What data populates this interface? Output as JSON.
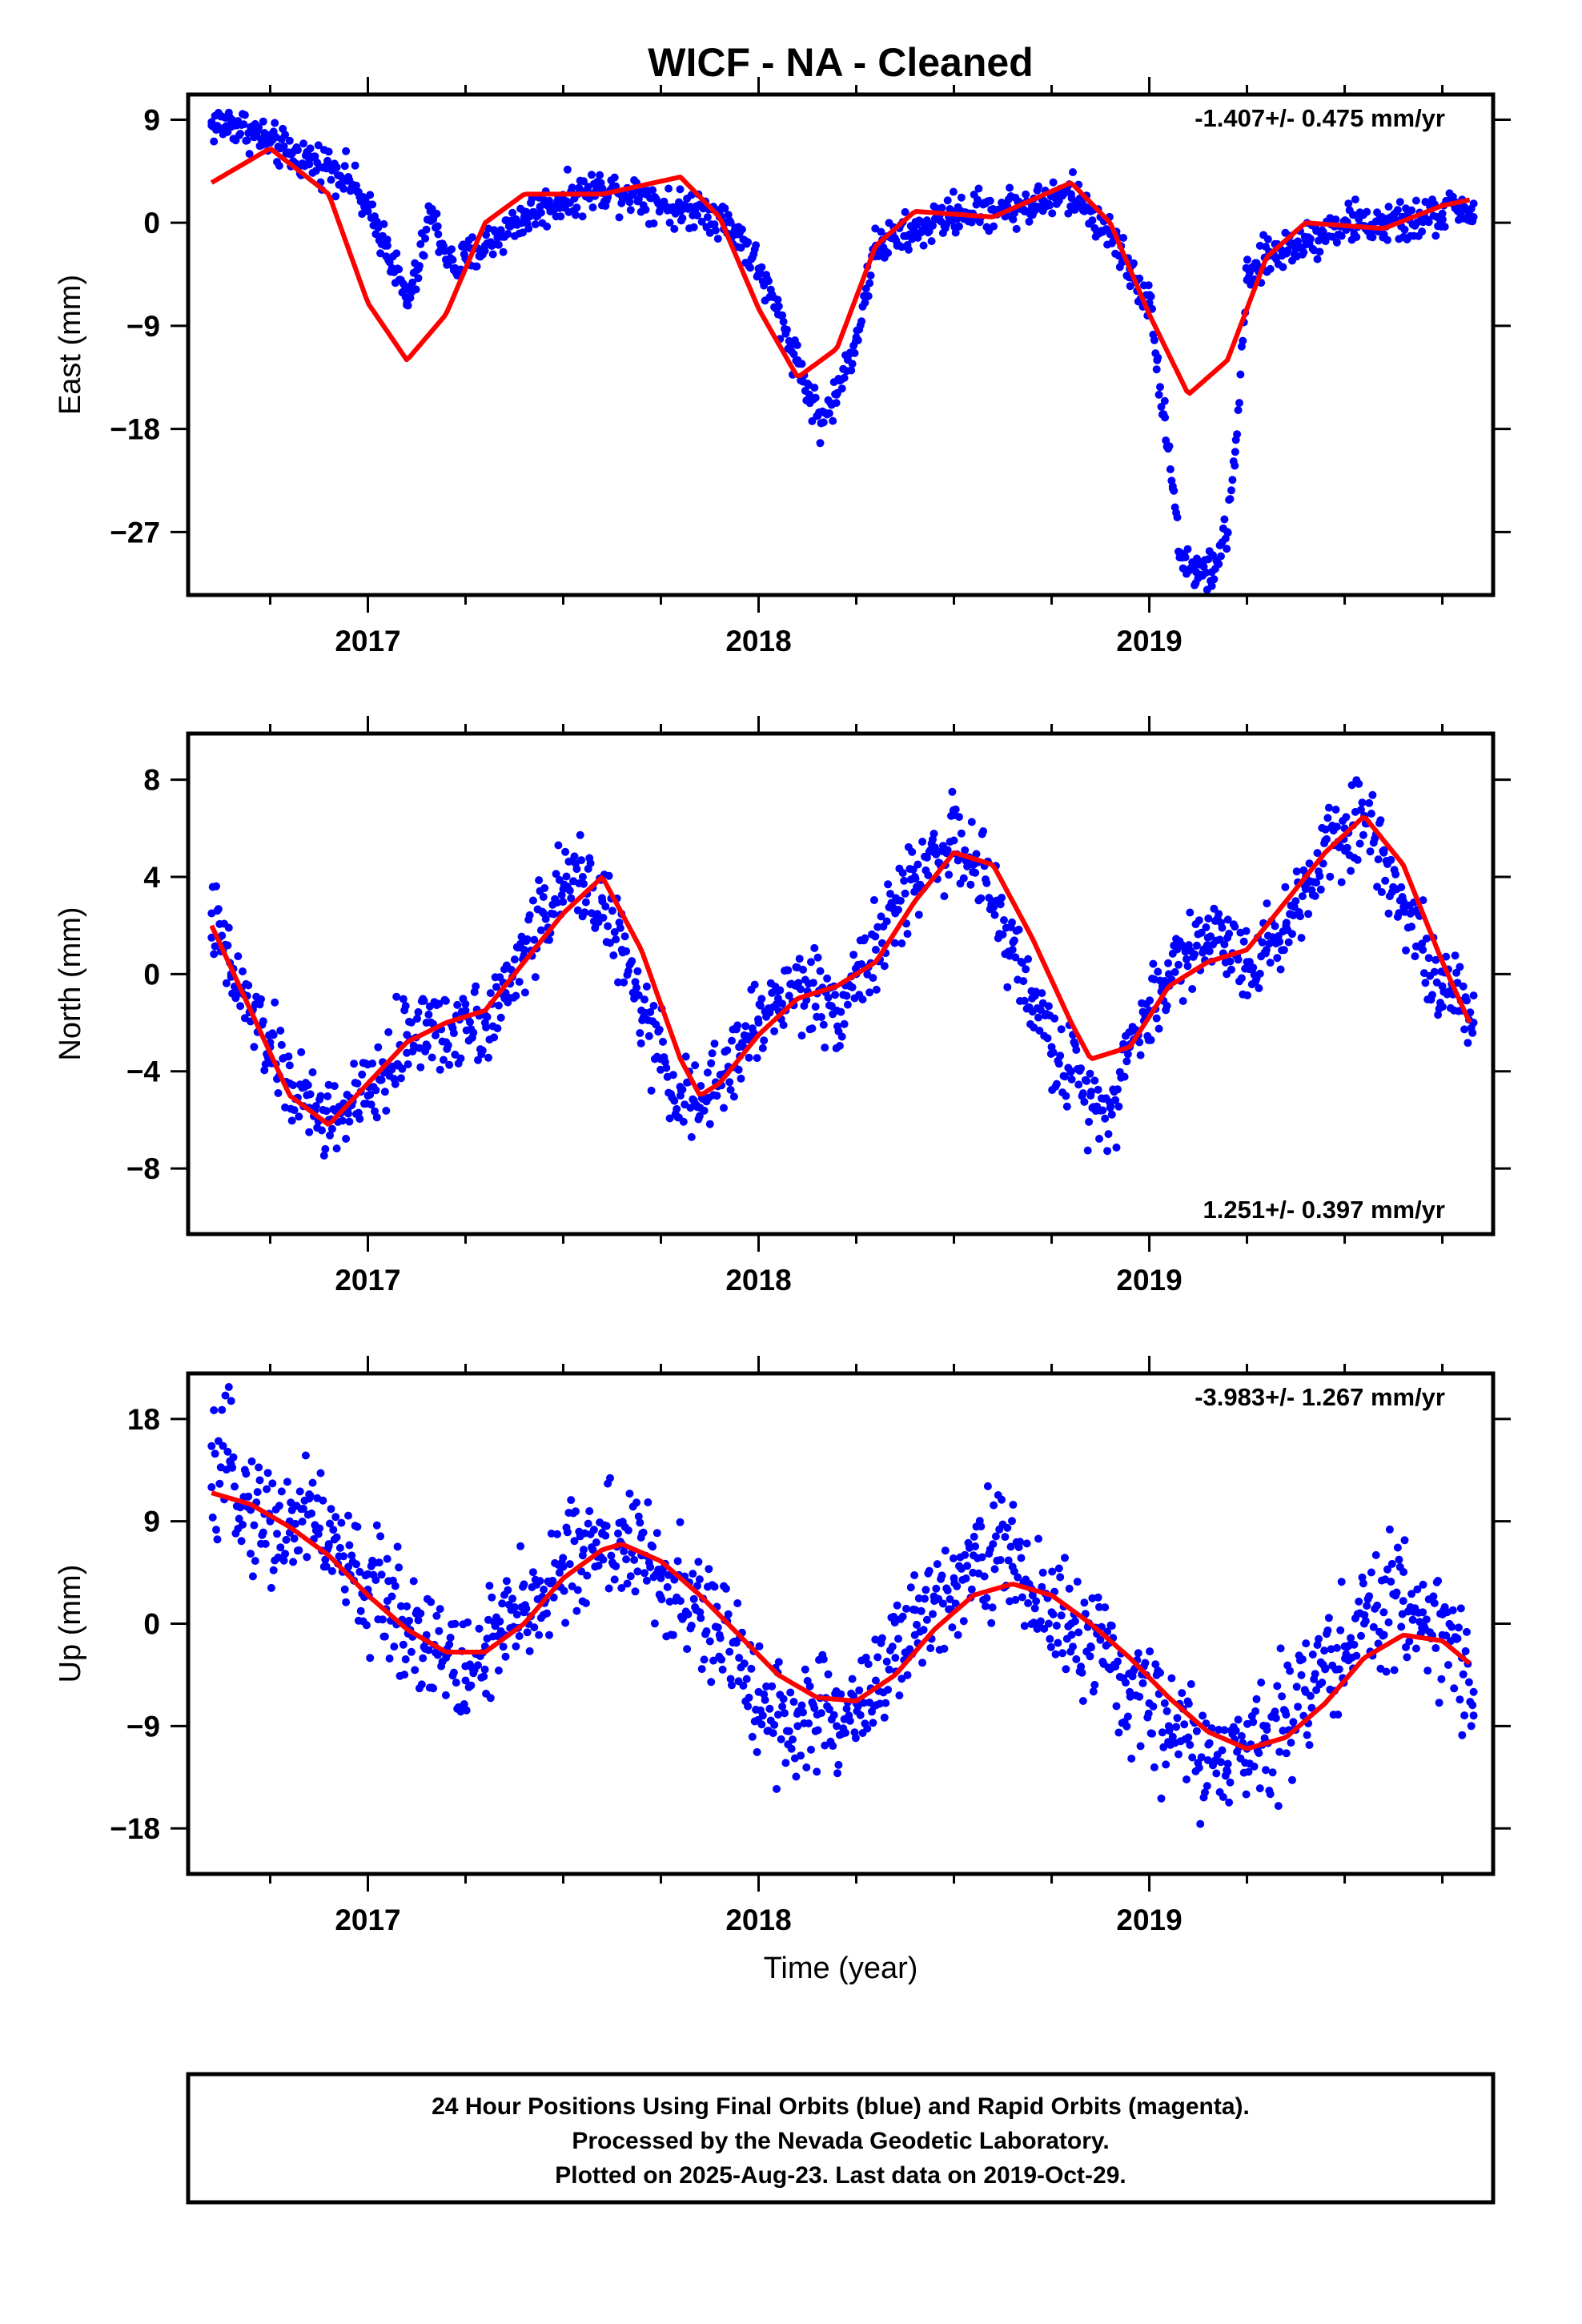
{
  "title": "WICF  - NA - Cleaned",
  "xlabel": "Time (year)",
  "caption": [
    "24 Hour Positions Using Final Orbits (blue) and Rapid Orbits (magenta).",
    "Processed by the Nevada Geodetic Laboratory.",
    "Plotted on 2025-Aug-23. Last data on 2019-Oct-29."
  ],
  "colors": {
    "final_orbits": "#0000ff",
    "model": "#ff0000",
    "frame": "#000000"
  },
  "chart_data": [
    {
      "type": "scatter",
      "ylabel": "East (mm)",
      "rate": "-1.407+/- 0.475 mm/yr",
      "xlim": [
        2016.54,
        2019.88
      ],
      "ylim": [
        -32.5,
        11.2
      ],
      "xticks": [
        2017,
        2018,
        2019
      ],
      "yticks": [
        9,
        0,
        -9,
        -18,
        -27
      ],
      "grid": false,
      "series": [
        {
          "kind": "points",
          "x": [
            2016.6,
            2016.65,
            2016.7,
            2016.75,
            2016.8,
            2016.85,
            2016.9,
            2016.95,
            2017.0,
            2017.05,
            2017.08,
            2017.1,
            2017.13,
            2017.16,
            2017.18,
            2017.22,
            2017.3,
            2017.4,
            2017.5,
            2017.6,
            2017.7,
            2017.8,
            2017.85,
            2017.9,
            2017.95,
            2018.0,
            2018.05,
            2018.1,
            2018.13,
            2018.16,
            2018.2,
            2018.25,
            2018.3,
            2018.4,
            2018.5,
            2018.6,
            2018.7,
            2018.8,
            2018.85,
            2018.9,
            2018.95,
            2019.0,
            2019.02,
            2019.04,
            2019.06,
            2019.08,
            2019.12,
            2019.16,
            2019.2,
            2019.22,
            2019.25,
            2019.3,
            2019.4,
            2019.5,
            2019.6,
            2019.7,
            2019.75,
            2019.8,
            2019.83
          ],
          "y": [
            8.5,
            8.7,
            8.0,
            7.0,
            6.0,
            5.5,
            5.0,
            4.0,
            1.0,
            -2.0,
            -5.0,
            -7.0,
            -4.0,
            1.0,
            -1.0,
            -4.0,
            -2.0,
            0.5,
            2.0,
            3.0,
            2.5,
            1.0,
            1.5,
            0.5,
            -1.0,
            -4.0,
            -8.0,
            -12.0,
            -15.0,
            -17.5,
            -15.0,
            -10.0,
            -2.0,
            -0.8,
            0.8,
            1.2,
            1.5,
            2.5,
            1.0,
            -1.0,
            -4.0,
            -7.0,
            -12.0,
            -17.0,
            -23.0,
            -29.0,
            -30.5,
            -30.5,
            -27.0,
            -20.0,
            -5.0,
            -3.0,
            -1.5,
            0.0,
            -0.2,
            0.2,
            0.8,
            1.5,
            0.5
          ]
        },
        {
          "kind": "model",
          "x": [
            2016.6,
            2016.75,
            2016.9,
            2017.0,
            2017.1,
            2017.2,
            2017.3,
            2017.4,
            2017.6,
            2017.8,
            2017.9,
            2018.0,
            2018.1,
            2018.2,
            2018.3,
            2018.4,
            2018.6,
            2018.8,
            2018.9,
            2019.0,
            2019.1,
            2019.2,
            2019.3,
            2019.4,
            2019.6,
            2019.75,
            2019.82
          ],
          "y": [
            3.5,
            6.5,
            2.5,
            -7.0,
            -12.0,
            -8.0,
            0.0,
            2.5,
            2.5,
            4.0,
            0.5,
            -7.5,
            -13.5,
            -11.0,
            -2.0,
            1.0,
            0.5,
            3.5,
            0.0,
            -8.0,
            -15.0,
            -12.0,
            -3.0,
            0.0,
            -0.5,
            1.5,
            2.0
          ]
        }
      ]
    },
    {
      "type": "scatter",
      "ylabel": "North (mm)",
      "rate": "1.251+/- 0.397 mm/yr",
      "xlim": [
        2016.54,
        2019.88
      ],
      "ylim": [
        -10.7,
        9.9
      ],
      "xticks": [
        2017,
        2018,
        2019
      ],
      "yticks": [
        8,
        4,
        0,
        -4,
        -8
      ],
      "grid": false,
      "series": [
        {
          "kind": "points",
          "x": [
            2016.6,
            2016.62,
            2016.65,
            2016.7,
            2016.75,
            2016.8,
            2016.85,
            2016.9,
            2016.95,
            2017.0,
            2017.05,
            2017.1,
            2017.15,
            2017.2,
            2017.25,
            2017.3,
            2017.35,
            2017.4,
            2017.45,
            2017.5,
            2017.55,
            2017.6,
            2017.65,
            2017.7,
            2017.75,
            2017.8,
            2017.85,
            2017.9,
            2017.95,
            2018.0,
            2018.05,
            2018.1,
            2018.15,
            2018.2,
            2018.25,
            2018.3,
            2018.35,
            2018.4,
            2018.45,
            2018.5,
            2018.55,
            2018.6,
            2018.65,
            2018.7,
            2018.75,
            2018.8,
            2018.85,
            2018.9,
            2018.95,
            2019.0,
            2019.05,
            2019.1,
            2019.15,
            2019.2,
            2019.25,
            2019.3,
            2019.35,
            2019.4,
            2019.45,
            2019.5,
            2019.55,
            2019.6,
            2019.65,
            2019.7,
            2019.75,
            2019.8,
            2019.83
          ],
          "y": [
            2.5,
            1.5,
            0.0,
            -1.5,
            -3.0,
            -4.5,
            -5.5,
            -6.0,
            -5.5,
            -5.0,
            -4.0,
            -2.5,
            -2.0,
            -2.8,
            -1.5,
            -2.0,
            -1.0,
            1.0,
            2.5,
            3.5,
            4.0,
            3.0,
            1.0,
            -1.5,
            -3.5,
            -5.0,
            -5.5,
            -4.5,
            -3.0,
            -2.0,
            -1.0,
            -0.5,
            -0.8,
            -1.5,
            0.0,
            1.0,
            2.5,
            4.0,
            5.0,
            5.5,
            4.5,
            3.0,
            1.0,
            -1.0,
            -3.0,
            -4.0,
            -5.0,
            -5.5,
            -3.0,
            -1.5,
            0.0,
            1.0,
            1.5,
            1.5,
            0.5,
            1.0,
            2.0,
            3.5,
            5.5,
            6.0,
            6.5,
            5.0,
            3.0,
            1.0,
            -0.5,
            -1.5,
            -2.0
          ]
        },
        {
          "kind": "model",
          "x": [
            2016.6,
            2016.7,
            2016.8,
            2016.9,
            2017.0,
            2017.1,
            2017.2,
            2017.3,
            2017.4,
            2017.5,
            2017.6,
            2017.7,
            2017.8,
            2017.85,
            2017.9,
            2018.0,
            2018.1,
            2018.2,
            2018.3,
            2018.4,
            2018.5,
            2018.6,
            2018.7,
            2018.8,
            2018.85,
            2018.95,
            2019.05,
            2019.15,
            2019.25,
            2019.35,
            2019.45,
            2019.55,
            2019.65,
            2019.75,
            2019.82
          ],
          "y": [
            2.0,
            -1.5,
            -5.0,
            -6.2,
            -4.5,
            -2.8,
            -2.0,
            -1.5,
            0.5,
            2.5,
            4.0,
            1.0,
            -3.5,
            -5.0,
            -4.5,
            -2.5,
            -1.0,
            -0.5,
            0.5,
            3.0,
            5.0,
            4.5,
            1.5,
            -2.0,
            -3.5,
            -3.0,
            -0.5,
            0.5,
            1.0,
            3.0,
            5.0,
            6.5,
            4.5,
            0.5,
            -2.0
          ]
        }
      ]
    },
    {
      "type": "scatter",
      "ylabel": "Up (mm)",
      "rate": "-3.983+/- 1.267 mm/yr",
      "xlim": [
        2016.54,
        2019.88
      ],
      "ylim": [
        -22,
        22
      ],
      "xticks": [
        2017,
        2018,
        2019
      ],
      "yticks": [
        18,
        9,
        0,
        -9,
        -18
      ],
      "grid": false,
      "series": [
        {
          "kind": "points",
          "x": [
            2016.6,
            2016.65,
            2016.7,
            2016.75,
            2016.8,
            2016.85,
            2016.9,
            2016.95,
            2017.0,
            2017.05,
            2017.1,
            2017.15,
            2017.2,
            2017.25,
            2017.3,
            2017.35,
            2017.4,
            2017.45,
            2017.5,
            2017.55,
            2017.6,
            2017.65,
            2017.7,
            2017.75,
            2017.8,
            2017.85,
            2017.9,
            2017.95,
            2018.0,
            2018.05,
            2018.1,
            2018.15,
            2018.2,
            2018.25,
            2018.3,
            2018.35,
            2018.4,
            2018.45,
            2018.5,
            2018.55,
            2018.6,
            2018.65,
            2018.7,
            2018.75,
            2018.8,
            2018.85,
            2018.9,
            2018.95,
            2019.0,
            2019.05,
            2019.1,
            2019.15,
            2019.2,
            2019.25,
            2019.3,
            2019.35,
            2019.4,
            2019.45,
            2019.5,
            2019.55,
            2019.6,
            2019.65,
            2019.7,
            2019.75,
            2019.8,
            2019.83
          ],
          "y": [
            12,
            14,
            10,
            9,
            8,
            11,
            7,
            5,
            3,
            2,
            0,
            -1,
            -3,
            -5,
            -2,
            -1,
            1,
            3,
            5,
            6,
            8,
            7,
            6,
            4,
            2,
            1,
            -1,
            -3,
            -6,
            -8,
            -9,
            -8,
            -9,
            -7,
            -5,
            -3,
            -1,
            2,
            4,
            6,
            7,
            5,
            3,
            1,
            0,
            -2,
            -4,
            -6,
            -7,
            -9,
            -10,
            -12,
            -13,
            -11,
            -9,
            -8,
            -6,
            -4,
            -2,
            0,
            1,
            2,
            1,
            -1,
            -3,
            -6
          ]
        },
        {
          "kind": "model",
          "x": [
            2016.6,
            2016.7,
            2016.8,
            2016.9,
            2017.0,
            2017.1,
            2017.2,
            2017.3,
            2017.4,
            2017.5,
            2017.6,
            2017.65,
            2017.75,
            2017.85,
            2017.95,
            2018.05,
            2018.15,
            2018.25,
            2018.35,
            2018.45,
            2018.55,
            2018.65,
            2018.75,
            2018.85,
            2018.95,
            2019.05,
            2019.15,
            2019.25,
            2019.35,
            2019.45,
            2019.55,
            2019.65,
            2019.75,
            2019.82
          ],
          "y": [
            11.5,
            10.5,
            8.5,
            6.0,
            2.5,
            -0.5,
            -2.5,
            -2.5,
            0.0,
            4.0,
            6.5,
            7.0,
            5.5,
            2.5,
            -1.0,
            -4.5,
            -6.5,
            -6.8,
            -4.5,
            -0.5,
            2.5,
            3.5,
            2.5,
            0.0,
            -3.0,
            -6.5,
            -9.5,
            -11.0,
            -10.0,
            -7.0,
            -3.0,
            -1.0,
            -1.5,
            -3.5
          ]
        }
      ]
    }
  ]
}
